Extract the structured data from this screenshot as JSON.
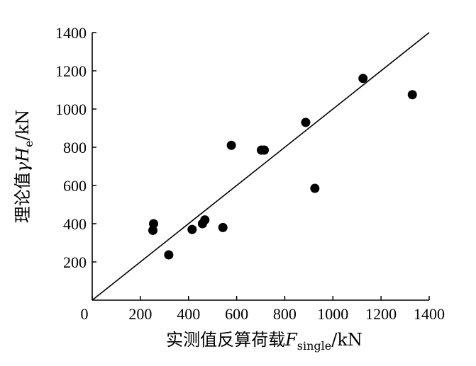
{
  "chart_data": {
    "type": "scatter",
    "xlabel": {
      "prefix": "实测值反算荷载",
      "symbol": "F",
      "subscript": "single",
      "unit": "/kN"
    },
    "ylabel": {
      "prefix": "理论值",
      "symbol": "γH",
      "subscript": "e",
      "unit": "/kN"
    },
    "xlim": [
      0,
      1400
    ],
    "ylim": [
      0,
      1400
    ],
    "x_ticks": [
      0,
      200,
      400,
      600,
      800,
      1000,
      1200,
      1400
    ],
    "y_ticks": [
      200,
      400,
      600,
      800,
      1000,
      1200,
      1400
    ],
    "grid": false,
    "reference_line": {
      "from": [
        0,
        0
      ],
      "to": [
        1400,
        1400
      ]
    },
    "marker_color": "#000000",
    "points": [
      {
        "x": 255,
        "y": 400
      },
      {
        "x": 252,
        "y": 365
      },
      {
        "x": 318,
        "y": 237
      },
      {
        "x": 415,
        "y": 370
      },
      {
        "x": 458,
        "y": 400
      },
      {
        "x": 468,
        "y": 420
      },
      {
        "x": 543,
        "y": 380
      },
      {
        "x": 578,
        "y": 810
      },
      {
        "x": 703,
        "y": 785
      },
      {
        "x": 715,
        "y": 785
      },
      {
        "x": 887,
        "y": 930
      },
      {
        "x": 925,
        "y": 585
      },
      {
        "x": 1125,
        "y": 1160
      },
      {
        "x": 1330,
        "y": 1075
      }
    ]
  }
}
